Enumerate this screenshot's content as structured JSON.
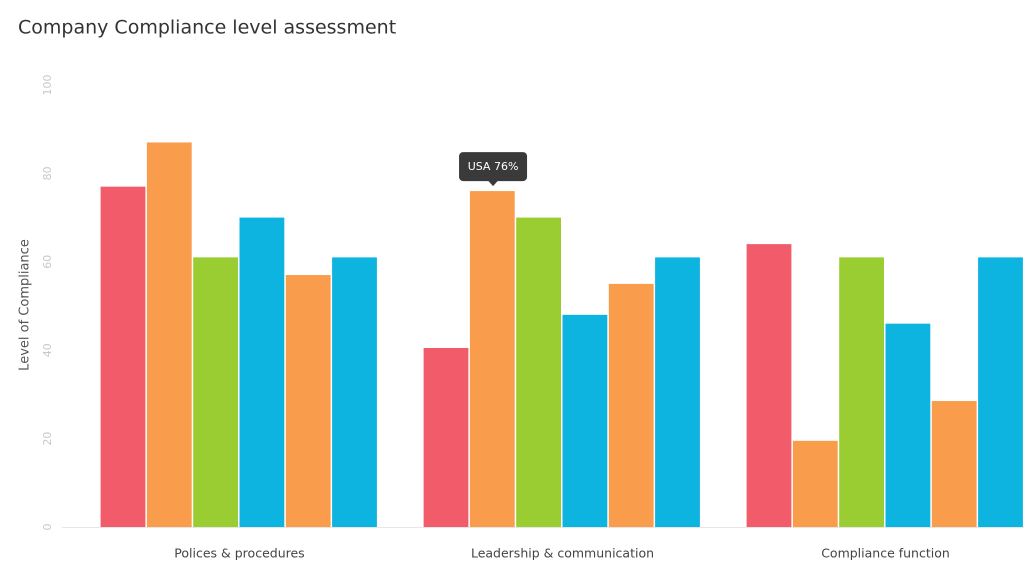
{
  "chart_data": {
    "type": "bar",
    "title": "Company Compliance level assessment",
    "y_label": "Level of Compliance",
    "categories": [
      "Polices & procedures",
      "Leadership & communication",
      "Compliance function"
    ],
    "series": [
      {
        "color": "#f25c6a",
        "values": [
          77,
          40.5,
          64
        ]
      },
      {
        "color": "#f99d4d",
        "values": [
          87,
          76,
          19.5
        ]
      },
      {
        "color": "#9acd32",
        "values": [
          61,
          70,
          61
        ]
      },
      {
        "color": "#0db4e0",
        "values": [
          70,
          48,
          46
        ]
      },
      {
        "color": "#f99d4d",
        "values": [
          57,
          55,
          28.5
        ]
      },
      {
        "color": "#0db4e0",
        "values": [
          61,
          61,
          61
        ]
      }
    ],
    "annotations": [
      {
        "text": "USA 76%"
      }
    ],
    "ylim": [
      0,
      100
    ],
    "yticks": [
      0,
      20,
      40,
      60,
      80,
      100
    ],
    "grid": false
  }
}
